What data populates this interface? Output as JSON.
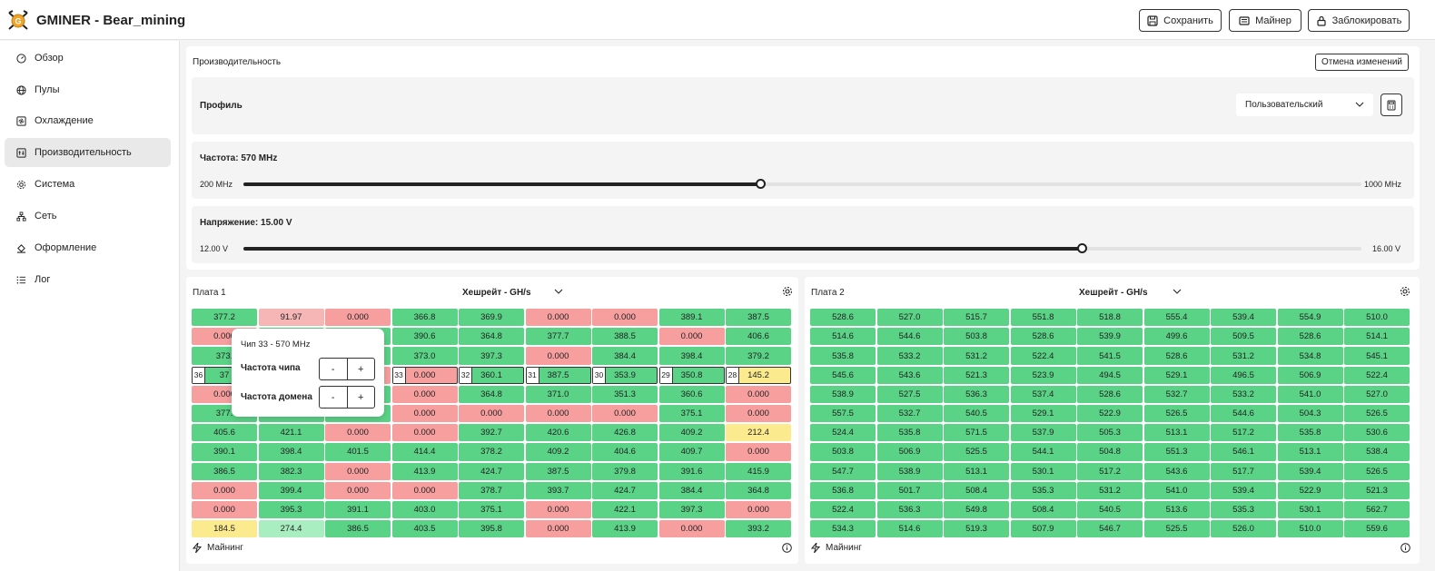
{
  "header": {
    "title": "GMINER - Bear_mining",
    "save_label": "Сохранить",
    "miner_label": "Майнер",
    "lock_label": "Заблокировать"
  },
  "sidebar": {
    "items": [
      {
        "label": "Обзор",
        "icon": "gauge-icon"
      },
      {
        "label": "Пулы",
        "icon": "globe-icon"
      },
      {
        "label": "Охлаждение",
        "icon": "fan-icon"
      },
      {
        "label": "Производительность",
        "icon": "performance-icon"
      },
      {
        "label": "Система",
        "icon": "gear-icon"
      },
      {
        "label": "Сеть",
        "icon": "network-icon"
      },
      {
        "label": "Оформление",
        "icon": "paint-bucket-icon"
      },
      {
        "label": "Лог",
        "icon": "list-icon"
      }
    ],
    "active_index": 3
  },
  "performance": {
    "title": "Производительность",
    "cancel_label": "Отмена изменений",
    "profile": {
      "label": "Профиль",
      "selected": "Пользовательский"
    },
    "frequency": {
      "label": "Частота: 570 MHz",
      "min": "200 MHz",
      "max": "1000 MHz",
      "value": 570,
      "range": [
        200,
        1000
      ]
    },
    "voltage": {
      "label": "Напряжение: 15.00 V",
      "min": "12.00 V",
      "max": "16.00 V",
      "value": 15.0,
      "range": [
        12,
        16
      ]
    }
  },
  "boards": [
    {
      "title": "Плата 1",
      "metric": "Хешрейт - GH/s",
      "footer": "Майнинг",
      "rows": [
        [
          [
            "377.2",
            "g"
          ],
          [
            "91.97",
            "lr"
          ],
          [
            "0.000",
            "r"
          ],
          [
            "366.8",
            "g"
          ],
          [
            "369.9",
            "g"
          ],
          [
            "0.000",
            "r"
          ],
          [
            "0.000",
            "r"
          ],
          [
            "389.1",
            "g"
          ],
          [
            "387.5",
            "g"
          ]
        ],
        [
          [
            "0.000",
            "r"
          ],
          [
            "",
            "g"
          ],
          [
            "",
            "g"
          ],
          [
            "390.6",
            "g"
          ],
          [
            "364.8",
            "g"
          ],
          [
            "377.7",
            "g"
          ],
          [
            "388.5",
            "g"
          ],
          [
            "0.000",
            "r"
          ],
          [
            "406.6",
            "g"
          ]
        ],
        [
          [
            "373.",
            "g"
          ],
          [
            "",
            "g"
          ],
          [
            "",
            "g"
          ],
          [
            "373.0",
            "g"
          ],
          [
            "397.3",
            "g"
          ],
          [
            "0.000",
            "r"
          ],
          [
            "384.4",
            "g"
          ],
          [
            "398.4",
            "g"
          ],
          [
            "379.2",
            "g"
          ]
        ],
        [
          [
            "37",
            "g",
            "36"
          ],
          [
            "",
            "g"
          ],
          [
            "",
            "r"
          ],
          [
            "0.000",
            "r",
            "33"
          ],
          [
            "360.1",
            "g",
            "32"
          ],
          [
            "387.5",
            "g",
            "31"
          ],
          [
            "353.9",
            "g",
            "30"
          ],
          [
            "350.8",
            "g",
            "29"
          ],
          [
            "145.2",
            "y",
            "28"
          ]
        ],
        [
          [
            "0.000",
            "r"
          ],
          [
            "",
            "g"
          ],
          [
            "",
            "g"
          ],
          [
            "0.000",
            "r"
          ],
          [
            "364.8",
            "g"
          ],
          [
            "371.0",
            "g"
          ],
          [
            "351.3",
            "g"
          ],
          [
            "360.6",
            "g"
          ],
          [
            "0.000",
            "r"
          ]
        ],
        [
          [
            "377.",
            "g"
          ],
          [
            "",
            "g"
          ],
          [
            "",
            "g"
          ],
          [
            "0.000",
            "r"
          ],
          [
            "0.000",
            "r"
          ],
          [
            "0.000",
            "r"
          ],
          [
            "0.000",
            "r"
          ],
          [
            "375.1",
            "g"
          ],
          [
            "0.000",
            "r"
          ]
        ],
        [
          [
            "405.6",
            "g"
          ],
          [
            "421.1",
            "g"
          ],
          [
            "0.000",
            "r"
          ],
          [
            "0.000",
            "r"
          ],
          [
            "392.7",
            "g"
          ],
          [
            "420.6",
            "g"
          ],
          [
            "426.8",
            "g"
          ],
          [
            "409.2",
            "g"
          ],
          [
            "212.4",
            "y"
          ]
        ],
        [
          [
            "390.1",
            "g"
          ],
          [
            "398.4",
            "g"
          ],
          [
            "401.5",
            "g"
          ],
          [
            "414.4",
            "g"
          ],
          [
            "378.2",
            "g"
          ],
          [
            "409.2",
            "g"
          ],
          [
            "404.6",
            "g"
          ],
          [
            "409.7",
            "g"
          ],
          [
            "0.000",
            "r"
          ]
        ],
        [
          [
            "386.5",
            "g"
          ],
          [
            "382.3",
            "g"
          ],
          [
            "0.000",
            "r"
          ],
          [
            "413.9",
            "g"
          ],
          [
            "424.7",
            "g"
          ],
          [
            "387.5",
            "g"
          ],
          [
            "379.8",
            "g"
          ],
          [
            "391.6",
            "g"
          ],
          [
            "415.9",
            "g"
          ]
        ],
        [
          [
            "0.000",
            "r"
          ],
          [
            "399.4",
            "g"
          ],
          [
            "0.000",
            "r"
          ],
          [
            "0.000",
            "r"
          ],
          [
            "378.7",
            "g"
          ],
          [
            "393.7",
            "g"
          ],
          [
            "424.7",
            "g"
          ],
          [
            "384.4",
            "g"
          ],
          [
            "364.8",
            "g"
          ]
        ],
        [
          [
            "0.000",
            "r"
          ],
          [
            "395.3",
            "g"
          ],
          [
            "391.1",
            "g"
          ],
          [
            "403.0",
            "g"
          ],
          [
            "375.1",
            "g"
          ],
          [
            "0.000",
            "r"
          ],
          [
            "422.1",
            "g"
          ],
          [
            "397.3",
            "g"
          ],
          [
            "0.000",
            "r"
          ]
        ],
        [
          [
            "184.5",
            "y"
          ],
          [
            "274.4",
            "lg"
          ],
          [
            "386.5",
            "g"
          ],
          [
            "403.5",
            "g"
          ],
          [
            "395.8",
            "g"
          ],
          [
            "0.000",
            "r"
          ],
          [
            "413.9",
            "g"
          ],
          [
            "0.000",
            "r"
          ],
          [
            "393.2",
            "g"
          ]
        ]
      ]
    },
    {
      "title": "Плата 2",
      "metric": "Хешрейт - GH/s",
      "footer": "Майнинг",
      "rows": [
        [
          [
            "528.6",
            "g"
          ],
          [
            "527.0",
            "g"
          ],
          [
            "515.7",
            "g"
          ],
          [
            "551.8",
            "g"
          ],
          [
            "518.8",
            "g"
          ],
          [
            "555.4",
            "g"
          ],
          [
            "539.4",
            "g"
          ],
          [
            "554.9",
            "g"
          ],
          [
            "510.0",
            "g"
          ]
        ],
        [
          [
            "514.6",
            "g"
          ],
          [
            "544.6",
            "g"
          ],
          [
            "503.8",
            "g"
          ],
          [
            "528.6",
            "g"
          ],
          [
            "539.9",
            "g"
          ],
          [
            "499.6",
            "g"
          ],
          [
            "509.5",
            "g"
          ],
          [
            "528.6",
            "g"
          ],
          [
            "514.1",
            "g"
          ]
        ],
        [
          [
            "535.8",
            "g"
          ],
          [
            "533.2",
            "g"
          ],
          [
            "531.2",
            "g"
          ],
          [
            "522.4",
            "g"
          ],
          [
            "541.5",
            "g"
          ],
          [
            "528.6",
            "g"
          ],
          [
            "531.2",
            "g"
          ],
          [
            "534.8",
            "g"
          ],
          [
            "545.1",
            "g"
          ]
        ],
        [
          [
            "545.6",
            "g"
          ],
          [
            "543.6",
            "g"
          ],
          [
            "521.3",
            "g"
          ],
          [
            "523.9",
            "g"
          ],
          [
            "494.5",
            "g"
          ],
          [
            "529.1",
            "g"
          ],
          [
            "496.5",
            "g"
          ],
          [
            "506.9",
            "g"
          ],
          [
            "522.4",
            "g"
          ]
        ],
        [
          [
            "538.9",
            "g"
          ],
          [
            "527.5",
            "g"
          ],
          [
            "536.3",
            "g"
          ],
          [
            "537.4",
            "g"
          ],
          [
            "528.6",
            "g"
          ],
          [
            "532.7",
            "g"
          ],
          [
            "533.2",
            "g"
          ],
          [
            "541.0",
            "g"
          ],
          [
            "527.0",
            "g"
          ]
        ],
        [
          [
            "557.5",
            "g"
          ],
          [
            "532.7",
            "g"
          ],
          [
            "540.5",
            "g"
          ],
          [
            "529.1",
            "g"
          ],
          [
            "522.9",
            "g"
          ],
          [
            "526.5",
            "g"
          ],
          [
            "544.6",
            "g"
          ],
          [
            "504.3",
            "g"
          ],
          [
            "526.5",
            "g"
          ]
        ],
        [
          [
            "524.4",
            "g"
          ],
          [
            "535.8",
            "g"
          ],
          [
            "571.5",
            "g"
          ],
          [
            "537.9",
            "g"
          ],
          [
            "505.3",
            "g"
          ],
          [
            "513.1",
            "g"
          ],
          [
            "517.2",
            "g"
          ],
          [
            "535.8",
            "g"
          ],
          [
            "530.6",
            "g"
          ]
        ],
        [
          [
            "503.8",
            "g"
          ],
          [
            "506.9",
            "g"
          ],
          [
            "525.5",
            "g"
          ],
          [
            "544.1",
            "g"
          ],
          [
            "504.8",
            "g"
          ],
          [
            "551.3",
            "g"
          ],
          [
            "546.1",
            "g"
          ],
          [
            "513.1",
            "g"
          ],
          [
            "538.4",
            "g"
          ]
        ],
        [
          [
            "547.7",
            "g"
          ],
          [
            "538.9",
            "g"
          ],
          [
            "513.1",
            "g"
          ],
          [
            "530.1",
            "g"
          ],
          [
            "517.2",
            "g"
          ],
          [
            "543.6",
            "g"
          ],
          [
            "517.7",
            "g"
          ],
          [
            "539.4",
            "g"
          ],
          [
            "526.5",
            "g"
          ]
        ],
        [
          [
            "536.8",
            "g"
          ],
          [
            "501.7",
            "g"
          ],
          [
            "508.4",
            "g"
          ],
          [
            "535.3",
            "g"
          ],
          [
            "531.2",
            "g"
          ],
          [
            "541.0",
            "g"
          ],
          [
            "539.4",
            "g"
          ],
          [
            "522.9",
            "g"
          ],
          [
            "521.3",
            "g"
          ]
        ],
        [
          [
            "522.4",
            "g"
          ],
          [
            "536.3",
            "g"
          ],
          [
            "549.8",
            "g"
          ],
          [
            "508.4",
            "g"
          ],
          [
            "540.5",
            "g"
          ],
          [
            "513.6",
            "g"
          ],
          [
            "535.3",
            "g"
          ],
          [
            "530.1",
            "g"
          ],
          [
            "562.7",
            "g"
          ]
        ],
        [
          [
            "534.3",
            "g"
          ],
          [
            "514.6",
            "g"
          ],
          [
            "519.3",
            "g"
          ],
          [
            "507.9",
            "g"
          ],
          [
            "546.7",
            "g"
          ],
          [
            "525.5",
            "g"
          ],
          [
            "526.0",
            "g"
          ],
          [
            "510.0",
            "g"
          ],
          [
            "559.6",
            "g"
          ]
        ]
      ]
    }
  ],
  "popup": {
    "title": "Чип 33 - 570 MHz",
    "chip_freq_label": "Частота чипа",
    "domain_freq_label": "Частота домена",
    "minus": "-",
    "plus": "+"
  }
}
